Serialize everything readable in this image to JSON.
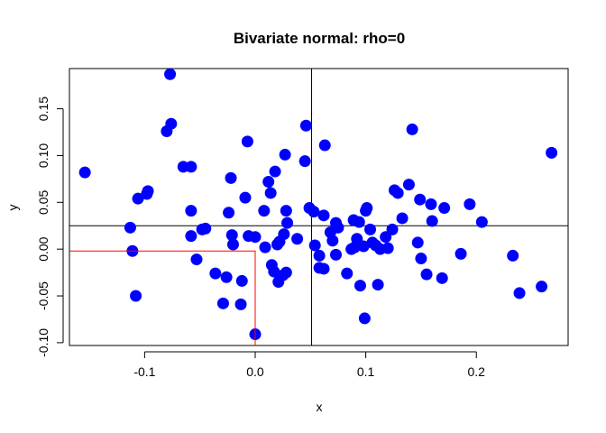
{
  "chart_data": {
    "type": "scatter",
    "title": "Bivariate normal: rho=0",
    "xlabel": "x",
    "ylabel": "y",
    "xlim": [
      -0.168,
      0.283
    ],
    "ylim": [
      -0.103,
      0.193
    ],
    "xticks": [
      -0.1,
      0.0,
      0.1,
      0.2
    ],
    "xtick_labels": [
      "-0.1",
      "0.0",
      "0.1",
      "0.2"
    ],
    "yticks": [
      -0.1,
      -0.05,
      0.0,
      0.05,
      0.1,
      0.15
    ],
    "ytick_labels": [
      "-0.10",
      "-0.05",
      "0.00",
      "0.05",
      "0.10",
      "0.15"
    ],
    "grid": false,
    "mean_lines": {
      "x": 0.051,
      "y": 0.025
    },
    "highlight_point": {
      "x": 0.0,
      "y": -0.002
    },
    "point_color": "#0000ff",
    "mean_line_color": "#000000",
    "highlight_color": "#ff0000",
    "points": [
      {
        "x": -0.154,
        "y": 0.082
      },
      {
        "x": -0.077,
        "y": 0.187
      },
      {
        "x": -0.076,
        "y": 0.134
      },
      {
        "x": -0.08,
        "y": 0.126
      },
      {
        "x": -0.065,
        "y": 0.088
      },
      {
        "x": -0.058,
        "y": 0.088
      },
      {
        "x": -0.097,
        "y": 0.062
      },
      {
        "x": -0.098,
        "y": 0.059
      },
      {
        "x": -0.106,
        "y": 0.054
      },
      {
        "x": -0.113,
        "y": 0.023
      },
      {
        "x": -0.111,
        "y": -0.002
      },
      {
        "x": -0.108,
        "y": -0.05
      },
      {
        "x": -0.058,
        "y": 0.041
      },
      {
        "x": -0.058,
        "y": 0.014
      },
      {
        "x": -0.048,
        "y": 0.021
      },
      {
        "x": -0.045,
        "y": 0.022
      },
      {
        "x": -0.053,
        "y": -0.011
      },
      {
        "x": -0.036,
        "y": -0.026
      },
      {
        "x": -0.029,
        "y": -0.058
      },
      {
        "x": -0.026,
        "y": -0.03
      },
      {
        "x": -0.022,
        "y": 0.076
      },
      {
        "x": -0.021,
        "y": 0.015
      },
      {
        "x": -0.024,
        "y": 0.039
      },
      {
        "x": -0.02,
        "y": 0.005
      },
      {
        "x": -0.013,
        "y": -0.059
      },
      {
        "x": -0.012,
        "y": -0.034
      },
      {
        "x": -0.009,
        "y": 0.055
      },
      {
        "x": -0.007,
        "y": 0.115
      },
      {
        "x": -0.006,
        "y": 0.014
      },
      {
        "x": 0.0,
        "y": 0.013
      },
      {
        "x": 0.0,
        "y": -0.091
      },
      {
        "x": 0.008,
        "y": 0.041
      },
      {
        "x": 0.009,
        "y": 0.002
      },
      {
        "x": 0.012,
        "y": 0.072
      },
      {
        "x": 0.014,
        "y": 0.06
      },
      {
        "x": 0.015,
        "y": -0.017
      },
      {
        "x": 0.017,
        "y": -0.024
      },
      {
        "x": 0.018,
        "y": 0.083
      },
      {
        "x": 0.02,
        "y": 0.005
      },
      {
        "x": 0.021,
        "y": -0.035
      },
      {
        "x": 0.022,
        "y": 0.008
      },
      {
        "x": 0.025,
        "y": -0.028
      },
      {
        "x": 0.026,
        "y": 0.016
      },
      {
        "x": 0.027,
        "y": 0.101
      },
      {
        "x": 0.028,
        "y": -0.025
      },
      {
        "x": 0.028,
        "y": 0.041
      },
      {
        "x": 0.029,
        "y": 0.028
      },
      {
        "x": 0.038,
        "y": 0.011
      },
      {
        "x": 0.045,
        "y": 0.094
      },
      {
        "x": 0.046,
        "y": 0.132
      },
      {
        "x": 0.049,
        "y": 0.044
      },
      {
        "x": 0.053,
        "y": 0.04
      },
      {
        "x": 0.054,
        "y": 0.004
      },
      {
        "x": 0.058,
        "y": -0.007
      },
      {
        "x": 0.058,
        "y": -0.02
      },
      {
        "x": 0.062,
        "y": -0.021
      },
      {
        "x": 0.062,
        "y": 0.036
      },
      {
        "x": 0.063,
        "y": 0.111
      },
      {
        "x": 0.068,
        "y": 0.018
      },
      {
        "x": 0.07,
        "y": 0.009
      },
      {
        "x": 0.073,
        "y": 0.028
      },
      {
        "x": 0.073,
        "y": -0.006
      },
      {
        "x": 0.075,
        "y": 0.023
      },
      {
        "x": 0.083,
        "y": -0.026
      },
      {
        "x": 0.087,
        "y": 0.0
      },
      {
        "x": 0.089,
        "y": 0.031
      },
      {
        "x": 0.09,
        "y": 0.002
      },
      {
        "x": 0.092,
        "y": 0.011
      },
      {
        "x": 0.094,
        "y": 0.029
      },
      {
        "x": 0.095,
        "y": -0.039
      },
      {
        "x": 0.098,
        "y": 0.003
      },
      {
        "x": 0.099,
        "y": -0.074
      },
      {
        "x": 0.1,
        "y": 0.041
      },
      {
        "x": 0.101,
        "y": 0.044
      },
      {
        "x": 0.104,
        "y": 0.021
      },
      {
        "x": 0.106,
        "y": 0.007
      },
      {
        "x": 0.109,
        "y": 0.004
      },
      {
        "x": 0.111,
        "y": -0.038
      },
      {
        "x": 0.113,
        "y": 0.0
      },
      {
        "x": 0.118,
        "y": 0.013
      },
      {
        "x": 0.12,
        "y": 0.001
      },
      {
        "x": 0.124,
        "y": 0.021
      },
      {
        "x": 0.126,
        "y": 0.063
      },
      {
        "x": 0.129,
        "y": 0.06
      },
      {
        "x": 0.133,
        "y": 0.033
      },
      {
        "x": 0.139,
        "y": 0.069
      },
      {
        "x": 0.142,
        "y": 0.128
      },
      {
        "x": 0.147,
        "y": 0.007
      },
      {
        "x": 0.149,
        "y": 0.053
      },
      {
        "x": 0.15,
        "y": -0.01
      },
      {
        "x": 0.155,
        "y": -0.027
      },
      {
        "x": 0.159,
        "y": 0.048
      },
      {
        "x": 0.16,
        "y": 0.03
      },
      {
        "x": 0.169,
        "y": -0.031
      },
      {
        "x": 0.171,
        "y": 0.044
      },
      {
        "x": 0.186,
        "y": -0.005
      },
      {
        "x": 0.194,
        "y": 0.048
      },
      {
        "x": 0.205,
        "y": 0.029
      },
      {
        "x": 0.233,
        "y": -0.007
      },
      {
        "x": 0.239,
        "y": -0.047
      },
      {
        "x": 0.259,
        "y": -0.04
      },
      {
        "x": 0.268,
        "y": 0.103
      }
    ]
  }
}
